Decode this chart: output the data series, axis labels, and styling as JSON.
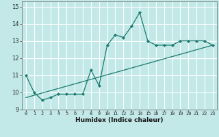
{
  "title": "",
  "xlabel": "Humidex (Indice chaleur)",
  "ylabel": "",
  "bg_color": "#c2e8e8",
  "grid_color": "#ffffff",
  "line_color": "#1a7a6e",
  "xlim": [
    -0.5,
    23.5
  ],
  "ylim": [
    9.0,
    15.3
  ],
  "x_ticks": [
    0,
    1,
    2,
    3,
    4,
    5,
    6,
    7,
    8,
    9,
    10,
    11,
    12,
    13,
    14,
    15,
    16,
    17,
    18,
    19,
    20,
    21,
    22,
    23
  ],
  "y_ticks": [
    9,
    10,
    11,
    12,
    13,
    14,
    15
  ],
  "line1_x": [
    0,
    1,
    2,
    3,
    4,
    5,
    6,
    7,
    8,
    9,
    10,
    11,
    12,
    13,
    14,
    15,
    16,
    17,
    18,
    19,
    20,
    21,
    22,
    23
  ],
  "line1_y": [
    11.0,
    10.0,
    9.55,
    9.7,
    9.9,
    9.9,
    9.9,
    9.9,
    11.3,
    10.4,
    12.75,
    13.35,
    13.2,
    13.85,
    14.65,
    13.0,
    12.75,
    12.75,
    12.75,
    13.0,
    13.0,
    13.0,
    13.0,
    12.75
  ],
  "line2_x": [
    0,
    23
  ],
  "line2_y": [
    9.7,
    12.75
  ],
  "marker_indices": [
    0,
    1,
    2,
    3,
    4,
    5,
    6,
    7,
    8,
    9,
    10,
    11,
    12,
    13,
    14,
    15,
    16,
    17,
    18,
    19,
    20,
    21,
    22,
    23
  ]
}
